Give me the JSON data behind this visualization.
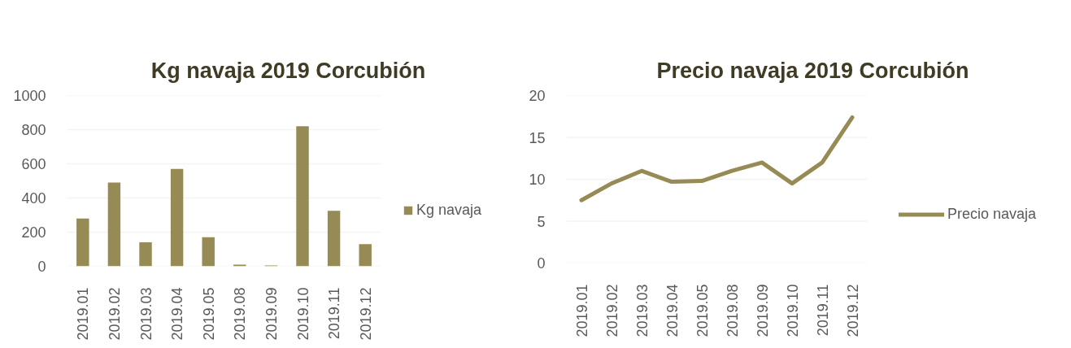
{
  "chart_data": [
    {
      "type": "bar",
      "title": "Kg navaja 2019 Corcubión",
      "categories": [
        "2019.01",
        "2019.02",
        "2019.03",
        "2019.04",
        "2019.05",
        "2019.08",
        "2019.09",
        "2019.10",
        "2019.11",
        "2019.12"
      ],
      "series": [
        {
          "name": "Kg navaja",
          "color": "#968b55",
          "values": [
            280,
            490,
            140,
            570,
            170,
            10,
            5,
            820,
            325,
            130
          ]
        }
      ],
      "ylim": [
        0,
        1000
      ],
      "yticks": [
        0,
        200,
        400,
        600,
        800,
        1000
      ],
      "grid": "y",
      "legend": "right"
    },
    {
      "type": "line",
      "title": "Precio navaja 2019 Corcubión",
      "categories": [
        "2019.01",
        "2019.02",
        "2019.03",
        "2019.04",
        "2019.05",
        "2019.08",
        "2019.09",
        "2019.10",
        "2019.11",
        "2019.12"
      ],
      "series": [
        {
          "name": "Precio navaja",
          "color": "#968b55",
          "values": [
            7.5,
            9.5,
            11,
            9.7,
            9.8,
            11,
            12,
            9.5,
            12,
            17.4
          ]
        }
      ],
      "ylim": [
        0,
        20
      ],
      "yticks": [
        0,
        5,
        10,
        15,
        20
      ],
      "grid": "y",
      "legend": "right"
    }
  ]
}
